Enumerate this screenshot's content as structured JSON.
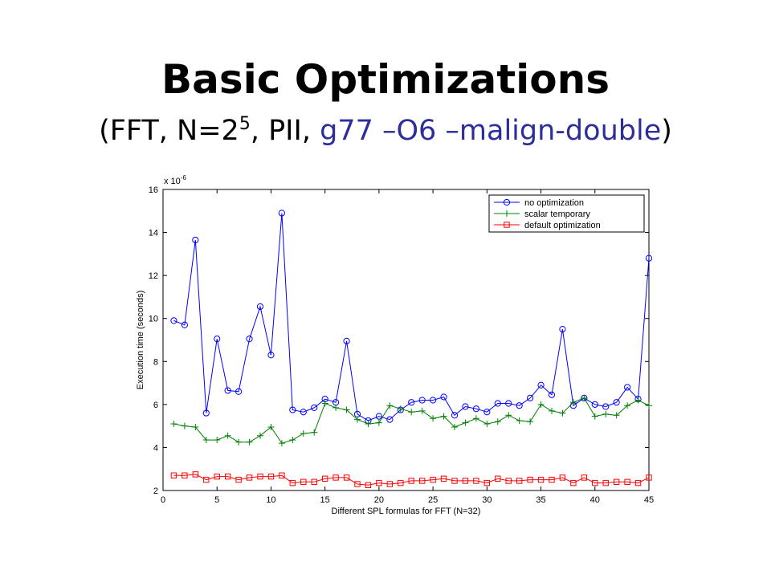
{
  "slide": {
    "title": "Basic Optimizations",
    "subtitle_prefix": "(FFT, N=2",
    "subtitle_exponent": "5",
    "subtitle_middle": ", PII, ",
    "subtitle_flags": "g77 –O6 –malign-double",
    "subtitle_suffix": ")",
    "highlight_color": "#2e2e9b"
  },
  "chart_data": {
    "type": "line",
    "title": "",
    "xlabel": "Different SPL formulas for FFT (N=32)",
    "ylabel": "Execution time (seconds)",
    "y_multiplier": "x 10",
    "y_multiplier_exponent": "-6",
    "xlim": [
      0,
      45
    ],
    "ylim": [
      2,
      16
    ],
    "x_ticks": [
      0,
      5,
      10,
      15,
      20,
      25,
      30,
      35,
      40,
      45
    ],
    "y_ticks": [
      2,
      4,
      6,
      8,
      10,
      12,
      14,
      16
    ],
    "grid": false,
    "legend_position": "top-right",
    "x": [
      1,
      2,
      3,
      4,
      5,
      6,
      7,
      8,
      9,
      10,
      11,
      12,
      13,
      14,
      15,
      16,
      17,
      18,
      19,
      20,
      21,
      22,
      23,
      24,
      25,
      26,
      27,
      28,
      29,
      30,
      31,
      32,
      33,
      34,
      35,
      36,
      37,
      38,
      39,
      40,
      41,
      42,
      43,
      44,
      45
    ],
    "series": [
      {
        "name": "no optimization",
        "color": "#0000ff",
        "marker": "circle",
        "values": [
          9.9,
          9.7,
          13.65,
          5.6,
          9.05,
          6.65,
          6.6,
          9.05,
          10.55,
          8.3,
          14.9,
          5.75,
          5.65,
          5.85,
          6.25,
          6.1,
          8.95,
          5.55,
          5.25,
          5.45,
          5.3,
          5.75,
          6.1,
          6.2,
          6.2,
          6.35,
          5.5,
          5.9,
          5.8,
          5.65,
          6.05,
          6.05,
          5.95,
          6.3,
          6.9,
          6.45,
          9.5,
          5.95,
          6.3,
          6.0,
          5.9,
          6.1,
          6.8,
          6.25,
          12.8
        ]
      },
      {
        "name": "scalar temporary",
        "color": "#008000",
        "marker": "plus",
        "values": [
          5.1,
          5.0,
          4.95,
          4.35,
          4.35,
          4.55,
          4.25,
          4.25,
          4.55,
          4.95,
          4.2,
          4.35,
          4.65,
          4.7,
          6.05,
          5.85,
          5.75,
          5.3,
          5.1,
          5.15,
          5.95,
          5.8,
          5.65,
          5.7,
          5.35,
          5.45,
          4.95,
          5.15,
          5.35,
          5.1,
          5.2,
          5.5,
          5.25,
          5.2,
          6.0,
          5.7,
          5.6,
          6.1,
          6.3,
          5.45,
          5.55,
          5.5,
          5.95,
          6.2,
          5.95
        ]
      },
      {
        "name": "default optimization",
        "color": "#ff0000",
        "marker": "square",
        "values": [
          2.7,
          2.7,
          2.75,
          2.5,
          2.65,
          2.65,
          2.5,
          2.6,
          2.65,
          2.65,
          2.7,
          2.35,
          2.4,
          2.4,
          2.55,
          2.6,
          2.6,
          2.3,
          2.25,
          2.35,
          2.3,
          2.35,
          2.45,
          2.45,
          2.5,
          2.55,
          2.45,
          2.45,
          2.45,
          2.35,
          2.55,
          2.45,
          2.45,
          2.5,
          2.5,
          2.5,
          2.6,
          2.35,
          2.6,
          2.35,
          2.35,
          2.4,
          2.4,
          2.35,
          2.6
        ]
      }
    ]
  }
}
